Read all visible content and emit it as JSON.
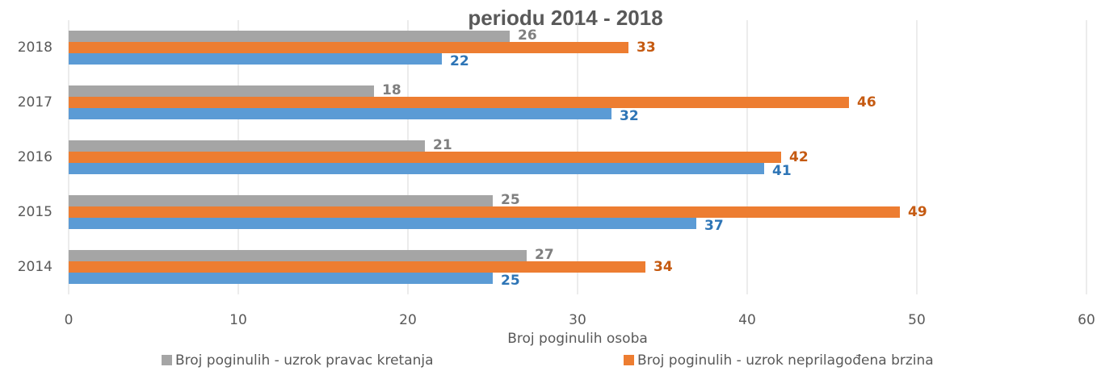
{
  "chart_data": {
    "type": "hbar",
    "title": "periodu 2014 - 2018",
    "x_label": "Broj poginulih osoba",
    "categories": [
      "2014",
      "2015",
      "2016",
      "2017",
      "2018"
    ],
    "series": [
      {
        "name": "Broj poginulih - uzrok pravac kretanja",
        "color": "#a5a5a5",
        "label_color": "#7f7f7f",
        "values": [
          27,
          25,
          21,
          18,
          26
        ]
      },
      {
        "name": "Broj poginulih - uzrok neprilagođena brzina",
        "color": "#ed7d31",
        "label_color": "#c55a11",
        "values": [
          34,
          49,
          42,
          46,
          33
        ]
      },
      {
        "color": "#5b9bd5",
        "label_color": "#2e75b6",
        "values": [
          25,
          37,
          41,
          32,
          22
        ]
      }
    ],
    "xlim": [
      0,
      60
    ],
    "xticks": [
      0,
      10,
      20,
      30,
      40,
      50,
      60
    ],
    "grid": true
  }
}
